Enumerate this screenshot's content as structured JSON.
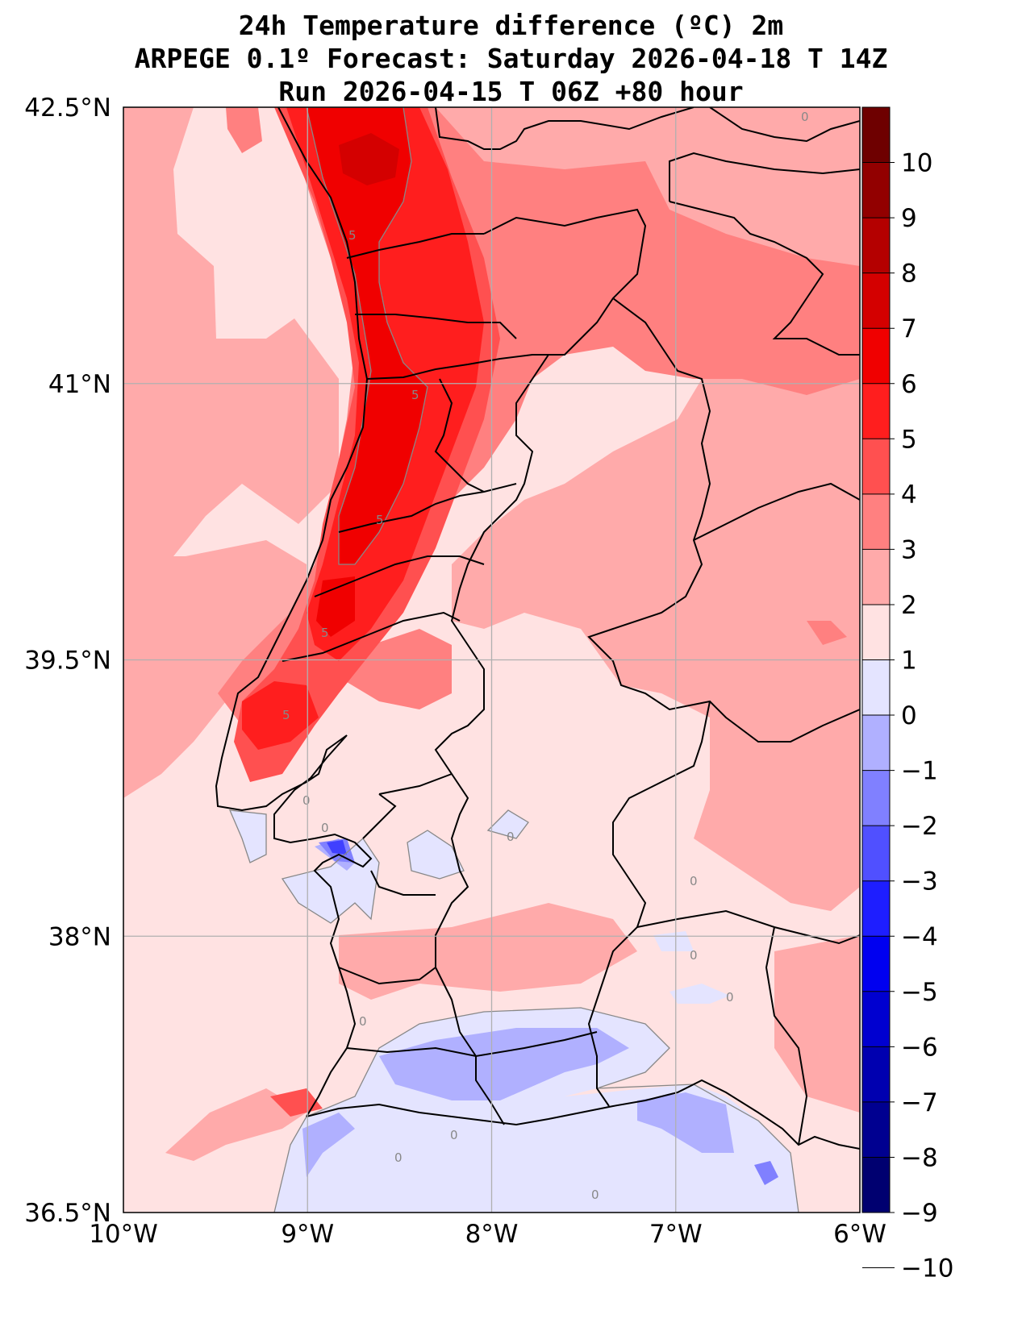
{
  "header": {
    "title_line1": "24h Temperature difference (ºC) 2m",
    "title_line2": "ARPEGE 0.1º Forecast: Saturday 2026-04-18 T 14Z",
    "title_line3": "Run 2026-04-15 T 06Z +80 hour"
  },
  "map": {
    "region": "Portugal / western Iberia",
    "lon_range": [
      -10,
      -6
    ],
    "lat_range": [
      36.5,
      42.5
    ],
    "lon_ticks": [
      {
        "value": -10,
        "label": "10°W"
      },
      {
        "value": -9,
        "label": "9°W"
      },
      {
        "value": -8,
        "label": "8°W"
      },
      {
        "value": -7,
        "label": "7°W"
      },
      {
        "value": -6,
        "label": "6°W"
      }
    ],
    "lat_ticks": [
      {
        "value": 42.5,
        "label": "42.5°N"
      },
      {
        "value": 41,
        "label": "41°N"
      },
      {
        "value": 39.5,
        "label": "39.5°N"
      },
      {
        "value": 38,
        "label": "38°N"
      },
      {
        "value": 36.5,
        "label": "36.5°N"
      }
    ],
    "contour_labels": [
      "0",
      "5"
    ]
  },
  "colorbar": {
    "units": "ºC",
    "levels": [
      10,
      9,
      8,
      7,
      6,
      5,
      4,
      3,
      2,
      1,
      0,
      -1,
      -2,
      -3,
      -4,
      -5,
      -6,
      -7,
      -8,
      -9,
      -10
    ],
    "labels": [
      "10",
      "9",
      "8",
      "7",
      "6",
      "5",
      "4",
      "3",
      "2",
      "1",
      "0",
      "−1",
      "−2",
      "−3",
      "−4",
      "−5",
      "−6",
      "−7",
      "−8",
      "−9",
      "−10"
    ],
    "colors": [
      "#6e0000",
      "#920000",
      "#b40000",
      "#d40000",
      "#f00000",
      "#ff1e1e",
      "#ff5050",
      "#ff8080",
      "#ffaaaa",
      "#ffe2e2",
      "#e4e4ff",
      "#b0b0ff",
      "#8080ff",
      "#5050ff",
      "#1e1eff",
      "#0000f0",
      "#0000d0",
      "#0000b0",
      "#000090",
      "#000070"
    ]
  },
  "colors": {
    "land_low": "#ffe2e2",
    "warm_1": "#ffaaaa",
    "warm_2": "#ff8080",
    "warm_3": "#ff5050",
    "warm_4": "#ff1e1e",
    "warm_5": "#f00000",
    "warm_6": "#d40000",
    "cool_1": "#e4e4ff",
    "cool_2": "#b0b0ff",
    "cool_3": "#8080ff",
    "cool_4": "#4040ff"
  }
}
